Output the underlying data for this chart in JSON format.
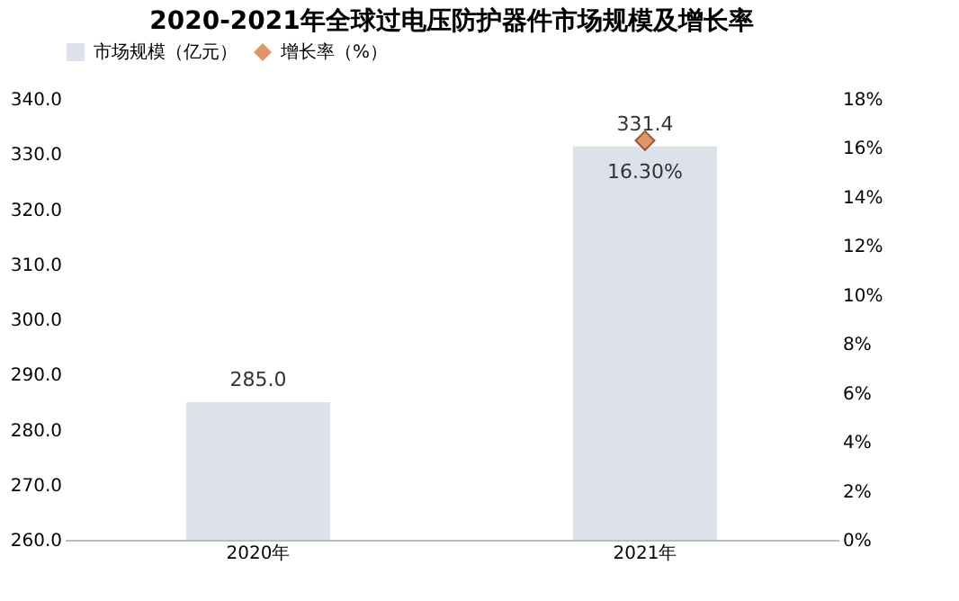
{
  "chart_data": {
    "type": "bar",
    "title": "2020-2021年全球过电压防护器件市场规模及增长率",
    "categories": [
      "2020年",
      "2021年"
    ],
    "series": [
      {
        "name": "市场规模（亿元）",
        "color": "#dde1ea",
        "values": [
          285.0,
          331.4
        ],
        "value_labels": [
          "285.0",
          "331.4"
        ]
      },
      {
        "name": "增长率（%）",
        "type": "scatter",
        "axis": "y2",
        "marker": "diamond",
        "color": "#e0956a",
        "values": [
          null,
          16.3
        ],
        "value_labels": [
          null,
          "16.30%"
        ]
      }
    ],
    "ylim": [
      260,
      340
    ],
    "yticks": [
      {
        "value": 260,
        "label": "260.0"
      },
      {
        "value": 270,
        "label": "270.0"
      },
      {
        "value": 280,
        "label": "280.0"
      },
      {
        "value": 290,
        "label": "290.0"
      },
      {
        "value": 300,
        "label": "300.0"
      },
      {
        "value": 310,
        "label": "310.0"
      },
      {
        "value": 320,
        "label": "320.0"
      },
      {
        "value": 330,
        "label": "330.0"
      },
      {
        "value": 340,
        "label": "340.0"
      }
    ],
    "y2lim": [
      0,
      18
    ],
    "y2ticks": [
      {
        "value": 0,
        "label": "0%"
      },
      {
        "value": 2,
        "label": "2%"
      },
      {
        "value": 4,
        "label": "4%"
      },
      {
        "value": 6,
        "label": "6%"
      },
      {
        "value": 8,
        "label": "8%"
      },
      {
        "value": 10,
        "label": "10%"
      },
      {
        "value": 12,
        "label": "12%"
      },
      {
        "value": 14,
        "label": "14%"
      },
      {
        "value": 16,
        "label": "16%"
      },
      {
        "value": 18,
        "label": "18%"
      }
    ],
    "legend": "top",
    "grid": false
  }
}
